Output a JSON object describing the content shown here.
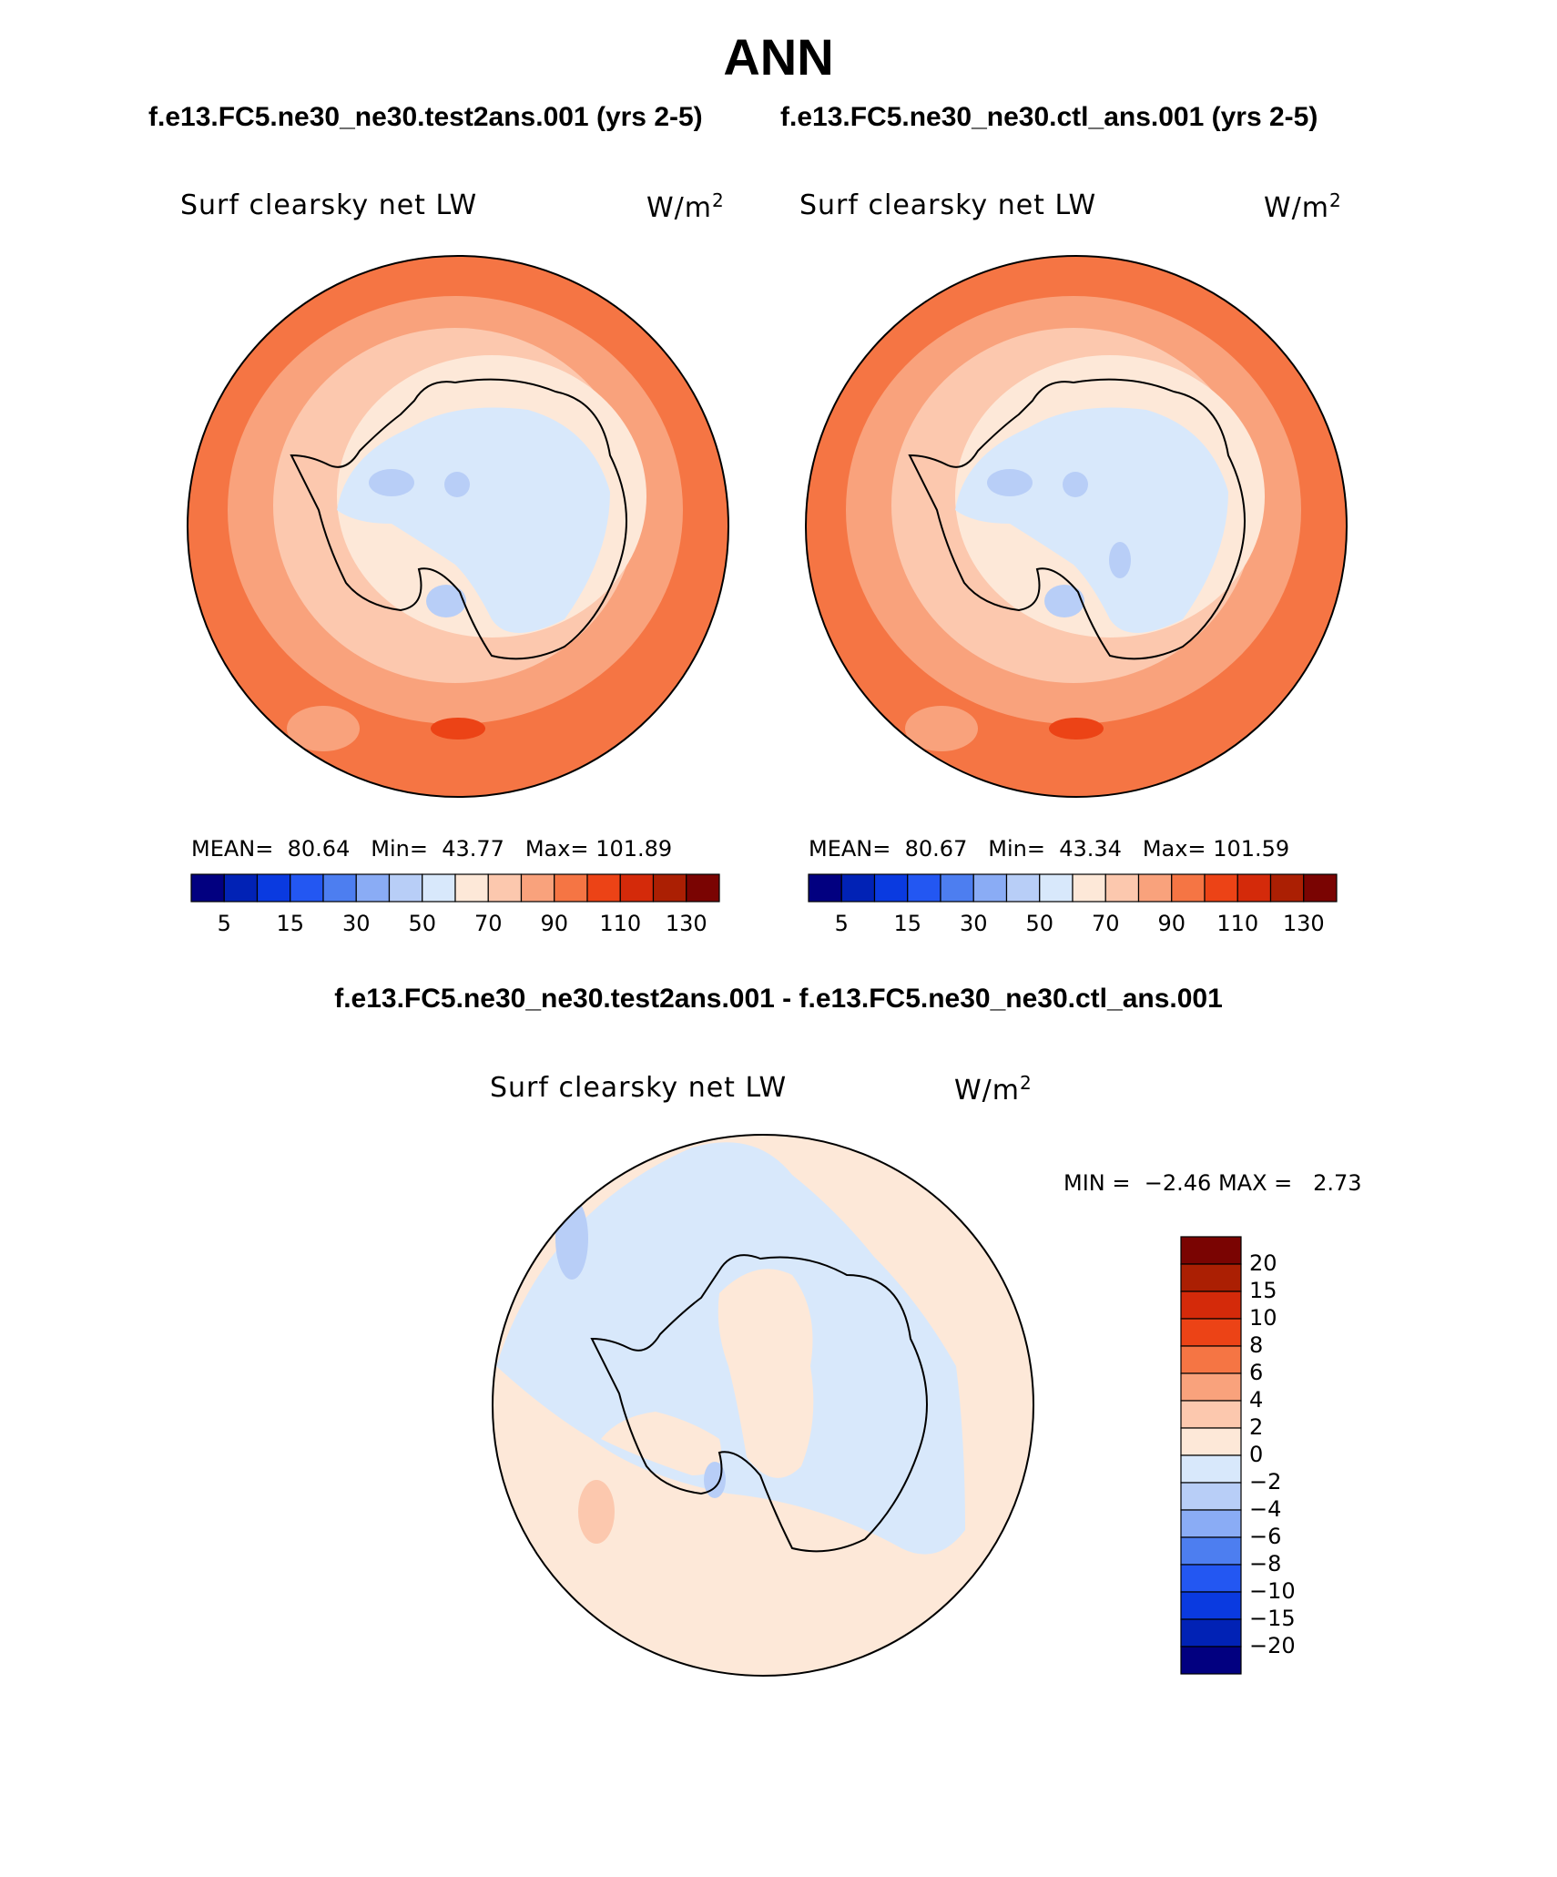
{
  "title": "ANN",
  "panels": {
    "left_case": "f.e13.FC5.ne30_ne30.test2ans.001 (yrs 2-5)",
    "right_case": "f.e13.FC5.ne30_ne30.ctl_ans.001 (yrs 2-5)",
    "diff_title": "f.e13.FC5.ne30_ne30.test2ans.001 - f.e13.FC5.ne30_ne30.ctl_ans.001"
  },
  "variable": {
    "name": "Surf clearsky net LW",
    "units_base": "W/m",
    "units_exp": "2"
  },
  "map_left": {
    "mean_label": "MEAN=",
    "mean": "80.64",
    "min_label": "Min=",
    "min": "43.77",
    "max_label": "Max=",
    "max": "101.89"
  },
  "map_right": {
    "mean_label": "MEAN=",
    "mean": "80.67",
    "min_label": "Min=",
    "min": "43.34",
    "max_label": "Max=",
    "max": "101.59"
  },
  "map_diff": {
    "min_label": "MIN =",
    "min": "−2.46",
    "max_label": "MAX =",
    "max": "2.73"
  },
  "colorbar_abs": {
    "colors": [
      "#020080",
      "#0122b5",
      "#0a3ae0",
      "#2357f2",
      "#4d7ef0",
      "#8aacf5",
      "#b8cef7",
      "#d8e8fb",
      "#fde8d8",
      "#fcc8ae",
      "#f9a27c",
      "#f57544",
      "#ec4316",
      "#d42a0a",
      "#ab1f03",
      "#7a0402"
    ],
    "ticks": [
      "5",
      "15",
      "30",
      "50",
      "70",
      "90",
      "110",
      "130"
    ]
  },
  "colorbar_diff": {
    "colors": [
      "#7a0402",
      "#ab1f03",
      "#d42a0a",
      "#ec4316",
      "#f57544",
      "#f9a27c",
      "#fcc8ae",
      "#fde8d8",
      "#d8e8fb",
      "#b8cef7",
      "#8aacf5",
      "#4d7ef0",
      "#2357f2",
      "#0a3ae0",
      "#0122b5",
      "#020080"
    ],
    "ticks": [
      "20",
      "15",
      "10",
      "8",
      "6",
      "4",
      "2",
      "0",
      "−2",
      "−4",
      "−6",
      "−8",
      "−10",
      "−15",
      "−20"
    ]
  }
}
